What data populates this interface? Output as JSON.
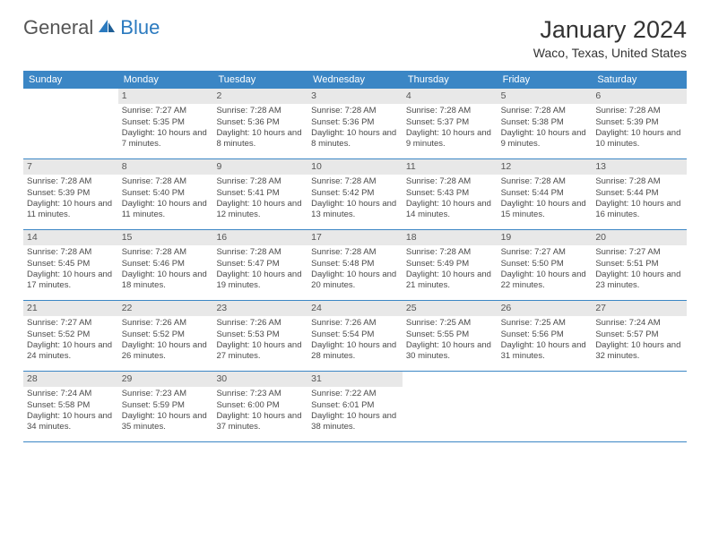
{
  "logo": {
    "text_general": "General",
    "text_blue": "Blue"
  },
  "title": "January 2024",
  "location": "Waco, Texas, United States",
  "weekdays": [
    "Sunday",
    "Monday",
    "Tuesday",
    "Wednesday",
    "Thursday",
    "Friday",
    "Saturday"
  ],
  "colors": {
    "header_bg": "#3b86c5",
    "header_text": "#ffffff",
    "daynum_bg": "#e8e8e8",
    "row_border": "#3b86c5",
    "body_text": "#4a4a4a"
  },
  "weeks": [
    [
      {
        "empty": true
      },
      {
        "day": "1",
        "sunrise": "Sunrise: 7:27 AM",
        "sunset": "Sunset: 5:35 PM",
        "daylight": "Daylight: 10 hours and 7 minutes."
      },
      {
        "day": "2",
        "sunrise": "Sunrise: 7:28 AM",
        "sunset": "Sunset: 5:36 PM",
        "daylight": "Daylight: 10 hours and 8 minutes."
      },
      {
        "day": "3",
        "sunrise": "Sunrise: 7:28 AM",
        "sunset": "Sunset: 5:36 PM",
        "daylight": "Daylight: 10 hours and 8 minutes."
      },
      {
        "day": "4",
        "sunrise": "Sunrise: 7:28 AM",
        "sunset": "Sunset: 5:37 PM",
        "daylight": "Daylight: 10 hours and 9 minutes."
      },
      {
        "day": "5",
        "sunrise": "Sunrise: 7:28 AM",
        "sunset": "Sunset: 5:38 PM",
        "daylight": "Daylight: 10 hours and 9 minutes."
      },
      {
        "day": "6",
        "sunrise": "Sunrise: 7:28 AM",
        "sunset": "Sunset: 5:39 PM",
        "daylight": "Daylight: 10 hours and 10 minutes."
      }
    ],
    [
      {
        "day": "7",
        "sunrise": "Sunrise: 7:28 AM",
        "sunset": "Sunset: 5:39 PM",
        "daylight": "Daylight: 10 hours and 11 minutes."
      },
      {
        "day": "8",
        "sunrise": "Sunrise: 7:28 AM",
        "sunset": "Sunset: 5:40 PM",
        "daylight": "Daylight: 10 hours and 11 minutes."
      },
      {
        "day": "9",
        "sunrise": "Sunrise: 7:28 AM",
        "sunset": "Sunset: 5:41 PM",
        "daylight": "Daylight: 10 hours and 12 minutes."
      },
      {
        "day": "10",
        "sunrise": "Sunrise: 7:28 AM",
        "sunset": "Sunset: 5:42 PM",
        "daylight": "Daylight: 10 hours and 13 minutes."
      },
      {
        "day": "11",
        "sunrise": "Sunrise: 7:28 AM",
        "sunset": "Sunset: 5:43 PM",
        "daylight": "Daylight: 10 hours and 14 minutes."
      },
      {
        "day": "12",
        "sunrise": "Sunrise: 7:28 AM",
        "sunset": "Sunset: 5:44 PM",
        "daylight": "Daylight: 10 hours and 15 minutes."
      },
      {
        "day": "13",
        "sunrise": "Sunrise: 7:28 AM",
        "sunset": "Sunset: 5:44 PM",
        "daylight": "Daylight: 10 hours and 16 minutes."
      }
    ],
    [
      {
        "day": "14",
        "sunrise": "Sunrise: 7:28 AM",
        "sunset": "Sunset: 5:45 PM",
        "daylight": "Daylight: 10 hours and 17 minutes."
      },
      {
        "day": "15",
        "sunrise": "Sunrise: 7:28 AM",
        "sunset": "Sunset: 5:46 PM",
        "daylight": "Daylight: 10 hours and 18 minutes."
      },
      {
        "day": "16",
        "sunrise": "Sunrise: 7:28 AM",
        "sunset": "Sunset: 5:47 PM",
        "daylight": "Daylight: 10 hours and 19 minutes."
      },
      {
        "day": "17",
        "sunrise": "Sunrise: 7:28 AM",
        "sunset": "Sunset: 5:48 PM",
        "daylight": "Daylight: 10 hours and 20 minutes."
      },
      {
        "day": "18",
        "sunrise": "Sunrise: 7:28 AM",
        "sunset": "Sunset: 5:49 PM",
        "daylight": "Daylight: 10 hours and 21 minutes."
      },
      {
        "day": "19",
        "sunrise": "Sunrise: 7:27 AM",
        "sunset": "Sunset: 5:50 PM",
        "daylight": "Daylight: 10 hours and 22 minutes."
      },
      {
        "day": "20",
        "sunrise": "Sunrise: 7:27 AM",
        "sunset": "Sunset: 5:51 PM",
        "daylight": "Daylight: 10 hours and 23 minutes."
      }
    ],
    [
      {
        "day": "21",
        "sunrise": "Sunrise: 7:27 AM",
        "sunset": "Sunset: 5:52 PM",
        "daylight": "Daylight: 10 hours and 24 minutes."
      },
      {
        "day": "22",
        "sunrise": "Sunrise: 7:26 AM",
        "sunset": "Sunset: 5:52 PM",
        "daylight": "Daylight: 10 hours and 26 minutes."
      },
      {
        "day": "23",
        "sunrise": "Sunrise: 7:26 AM",
        "sunset": "Sunset: 5:53 PM",
        "daylight": "Daylight: 10 hours and 27 minutes."
      },
      {
        "day": "24",
        "sunrise": "Sunrise: 7:26 AM",
        "sunset": "Sunset: 5:54 PM",
        "daylight": "Daylight: 10 hours and 28 minutes."
      },
      {
        "day": "25",
        "sunrise": "Sunrise: 7:25 AM",
        "sunset": "Sunset: 5:55 PM",
        "daylight": "Daylight: 10 hours and 30 minutes."
      },
      {
        "day": "26",
        "sunrise": "Sunrise: 7:25 AM",
        "sunset": "Sunset: 5:56 PM",
        "daylight": "Daylight: 10 hours and 31 minutes."
      },
      {
        "day": "27",
        "sunrise": "Sunrise: 7:24 AM",
        "sunset": "Sunset: 5:57 PM",
        "daylight": "Daylight: 10 hours and 32 minutes."
      }
    ],
    [
      {
        "day": "28",
        "sunrise": "Sunrise: 7:24 AM",
        "sunset": "Sunset: 5:58 PM",
        "daylight": "Daylight: 10 hours and 34 minutes."
      },
      {
        "day": "29",
        "sunrise": "Sunrise: 7:23 AM",
        "sunset": "Sunset: 5:59 PM",
        "daylight": "Daylight: 10 hours and 35 minutes."
      },
      {
        "day": "30",
        "sunrise": "Sunrise: 7:23 AM",
        "sunset": "Sunset: 6:00 PM",
        "daylight": "Daylight: 10 hours and 37 minutes."
      },
      {
        "day": "31",
        "sunrise": "Sunrise: 7:22 AM",
        "sunset": "Sunset: 6:01 PM",
        "daylight": "Daylight: 10 hours and 38 minutes."
      },
      {
        "empty": true
      },
      {
        "empty": true
      },
      {
        "empty": true
      }
    ]
  ]
}
